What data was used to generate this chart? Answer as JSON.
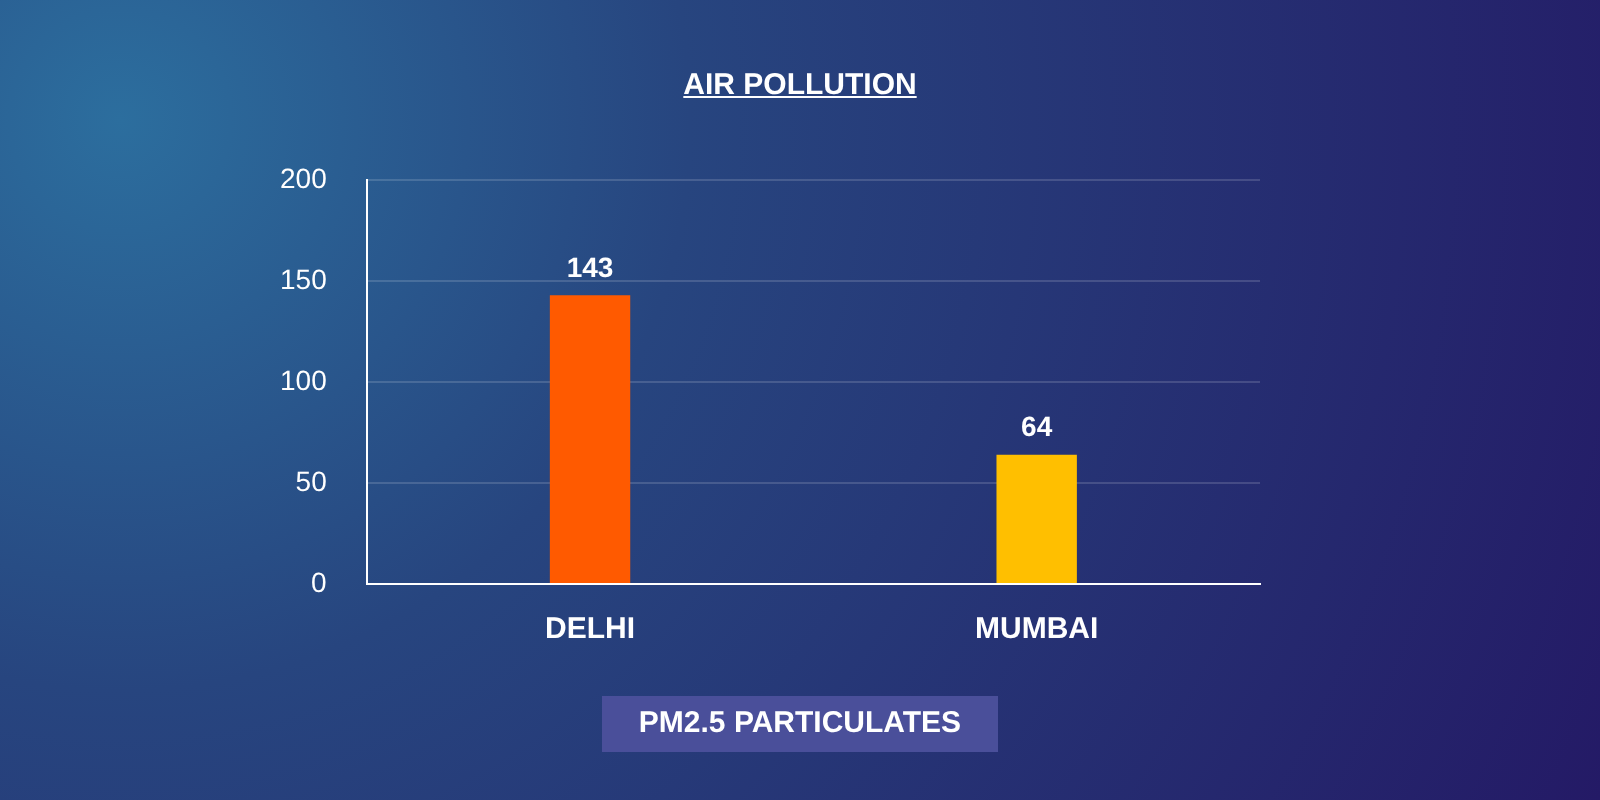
{
  "chart_data": {
    "type": "bar",
    "title": "AIR POLLUTION",
    "xlabel": "PM2.5 PARTICULATES",
    "categories": [
      "DELHI",
      "MUMBAI"
    ],
    "values": [
      143,
      64
    ],
    "colors": [
      "#ff5a00",
      "#ffbf00"
    ],
    "ylim": [
      0,
      200
    ],
    "yticks": [
      0,
      50,
      100,
      150,
      200
    ],
    "grid": "y",
    "data_labels": true
  }
}
